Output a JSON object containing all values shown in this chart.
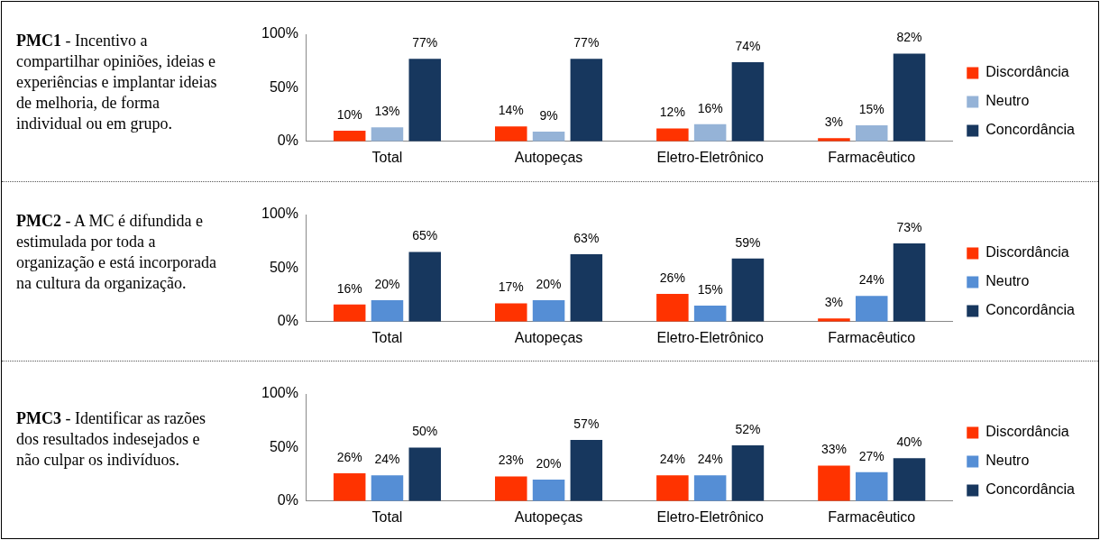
{
  "chart_data": [
    {
      "type": "other",
      "title": "PMC1",
      "subtitle": "- Incentivo a compartilhar opiniões, ideias e experiências e implantar ideias de melhoria, de forma individual ou em grupo."
    },
    {
      "type": "bar",
      "categories": [
        "Total",
        "Autopeças",
        "Eletro-Eletrônico",
        "Farmacêutico"
      ],
      "series": [
        {
          "name": "Discordância",
          "color": "#ff3300",
          "values": [
            10,
            14,
            12,
            3
          ],
          "value_labels": [
            "10%",
            "14%",
            "12%",
            "3%"
          ]
        },
        {
          "name": "Neutro",
          "color": "#95b3d7",
          "values": [
            13,
            9,
            16,
            15
          ],
          "value_labels": [
            "13%",
            "9%",
            "16%",
            "15%"
          ]
        },
        {
          "name": "Concordância",
          "color": "#17375e",
          "values": [
            77,
            77,
            74,
            82
          ],
          "value_labels": [
            "77%",
            "77%",
            "74%",
            "82%"
          ]
        }
      ],
      "ylim": [
        0,
        100
      ],
      "yticks": [
        {
          "value": 0,
          "label": "0%"
        },
        {
          "value": 50,
          "label": "50%"
        },
        {
          "value": 100,
          "label": "100%"
        }
      ],
      "legend": "right"
    },
    {
      "type": "other",
      "title": "PMC2",
      "subtitle": "- A MC é difundida e estimulada por toda a organização e está incorporada na cultura da organização."
    },
    {
      "type": "bar",
      "categories": [
        "Total",
        "Autopeças",
        "Eletro-Eletrônico",
        "Farmacêutico"
      ],
      "series": [
        {
          "name": "Discordância",
          "color": "#ff3300",
          "values": [
            16,
            17,
            26,
            3
          ],
          "value_labels": [
            "16%",
            "17%",
            "26%",
            "3%"
          ]
        },
        {
          "name": "Neutro",
          "color": "#558ed5",
          "values": [
            20,
            20,
            15,
            24
          ],
          "value_labels": [
            "20%",
            "20%",
            "15%",
            "24%"
          ]
        },
        {
          "name": "Concordância",
          "color": "#17375e",
          "values": [
            65,
            63,
            59,
            73
          ],
          "value_labels": [
            "65%",
            "63%",
            "59%",
            "73%"
          ]
        }
      ],
      "ylim": [
        0,
        100
      ],
      "yticks": [
        {
          "value": 0,
          "label": "0%"
        },
        {
          "value": 50,
          "label": "50%"
        },
        {
          "value": 100,
          "label": "100%"
        }
      ],
      "legend": "right"
    },
    {
      "type": "other",
      "title": "PMC3",
      "subtitle": "- Identificar as razões dos resultados indesejados e não culpar os indivíduos."
    },
    {
      "type": "bar",
      "categories": [
        "Total",
        "Autopeças",
        "Eletro-Eletrônico",
        "Farmacêutico"
      ],
      "series": [
        {
          "name": "Discordância",
          "color": "#ff3300",
          "values": [
            26,
            23,
            24,
            33
          ],
          "value_labels": [
            "26%",
            "23%",
            "24%",
            "33%"
          ]
        },
        {
          "name": "Neutro",
          "color": "#558ed5",
          "values": [
            24,
            20,
            24,
            27
          ],
          "value_labels": [
            "24%",
            "20%",
            "24%",
            "27%"
          ]
        },
        {
          "name": "Concordância",
          "color": "#17375e",
          "values": [
            50,
            57,
            52,
            40
          ],
          "value_labels": [
            "50%",
            "57%",
            "52%",
            "40%"
          ]
        }
      ],
      "ylim": [
        0,
        100
      ],
      "yticks": [
        {
          "value": 0,
          "label": "0%"
        },
        {
          "value": 50,
          "label": "50%"
        },
        {
          "value": 100,
          "label": "100%"
        }
      ],
      "legend": "right"
    }
  ]
}
